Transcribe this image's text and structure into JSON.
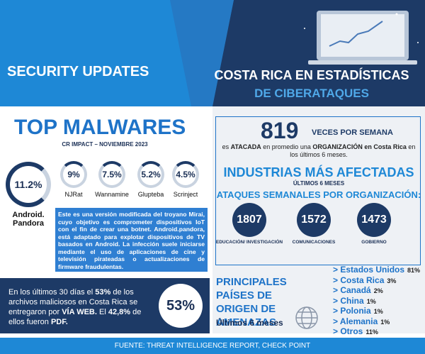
{
  "header": {
    "left_title": "SECURITY UPDATES",
    "right_title": "COSTA RICA EN ESTADÍSTICAS",
    "right_subtitle": "DE CIBERATAQUES"
  },
  "malwares": {
    "title": "TOP MALWARES",
    "subtitle": "CR IMPACT – NOVIEMBRE 2023",
    "top": {
      "value": "11.2%",
      "name": "Android. Pandora"
    },
    "others": [
      {
        "value": "9%",
        "name": "NJRat"
      },
      {
        "value": "7.5%",
        "name": "Wannamine"
      },
      {
        "value": "5.2%",
        "name": "Glupteba"
      },
      {
        "value": "4.5%",
        "name": "Scrinject"
      }
    ],
    "description": "Este es una versión modificada del troyano Mirai, cuyo objetivo es comprometer dispositivos IoT con el fin de crear una botnet. Android.pandora, está adaptado para explotar dispositivos de TV basados en Android. La infección suele iniciarse mediante el uso de aplicaciones de cine y televisión pirateadas o actualizaciones de firmware fraudulentas."
  },
  "web_stat": {
    "text": [
      "En los últimos 30 días el ",
      "53%",
      " de los archivos maliciosos en Costa Rica se entregaron por ",
      "VÍA WEB.",
      " El ",
      "42,8%",
      " de ellos fueron ",
      "PDF."
    ],
    "value": "53%"
  },
  "attacks": {
    "count": "819",
    "count_label": "VECES POR SEMANA",
    "text": [
      "es ",
      "ATACADA",
      " en promedio una ",
      "ORGANIZACIÓN en Costa Rica",
      " en los últimos 6 meses."
    ]
  },
  "industries": {
    "title": "INDUSTRIAS MÁS AFECTADAS",
    "period": "ÚLTIMOS 6 MESES",
    "subtitle": "ATAQUES SEMANALES POR ORGANIZACIÓN:",
    "items": [
      {
        "value": "1807",
        "label": "EDUCACIÓN/ INVESTIGACIÓN"
      },
      {
        "value": "1572",
        "label": "COMUNICACIONES"
      },
      {
        "value": "1473",
        "label": "GOBIERNO"
      }
    ]
  },
  "countries": {
    "title": "PRINCIPALES PAÍSES DE ORIGEN DE AMENAZAS",
    "period": "Últimos 6 meses",
    "items": [
      {
        "name": "Estados Unidos",
        "value": "81%"
      },
      {
        "name": "Costa Rica",
        "value": "3%"
      },
      {
        "name": "Canadá",
        "value": "2%"
      },
      {
        "name": "China",
        "value": "1%"
      },
      {
        "name": "Polonia",
        "value": "1%"
      },
      {
        "name": "Alemania",
        "value": "1%"
      },
      {
        "name": "Otros",
        "value": "11%"
      }
    ]
  },
  "footer": "FUENTE: THREAT INTELLIGENCE REPORT, CHECK POINT"
}
